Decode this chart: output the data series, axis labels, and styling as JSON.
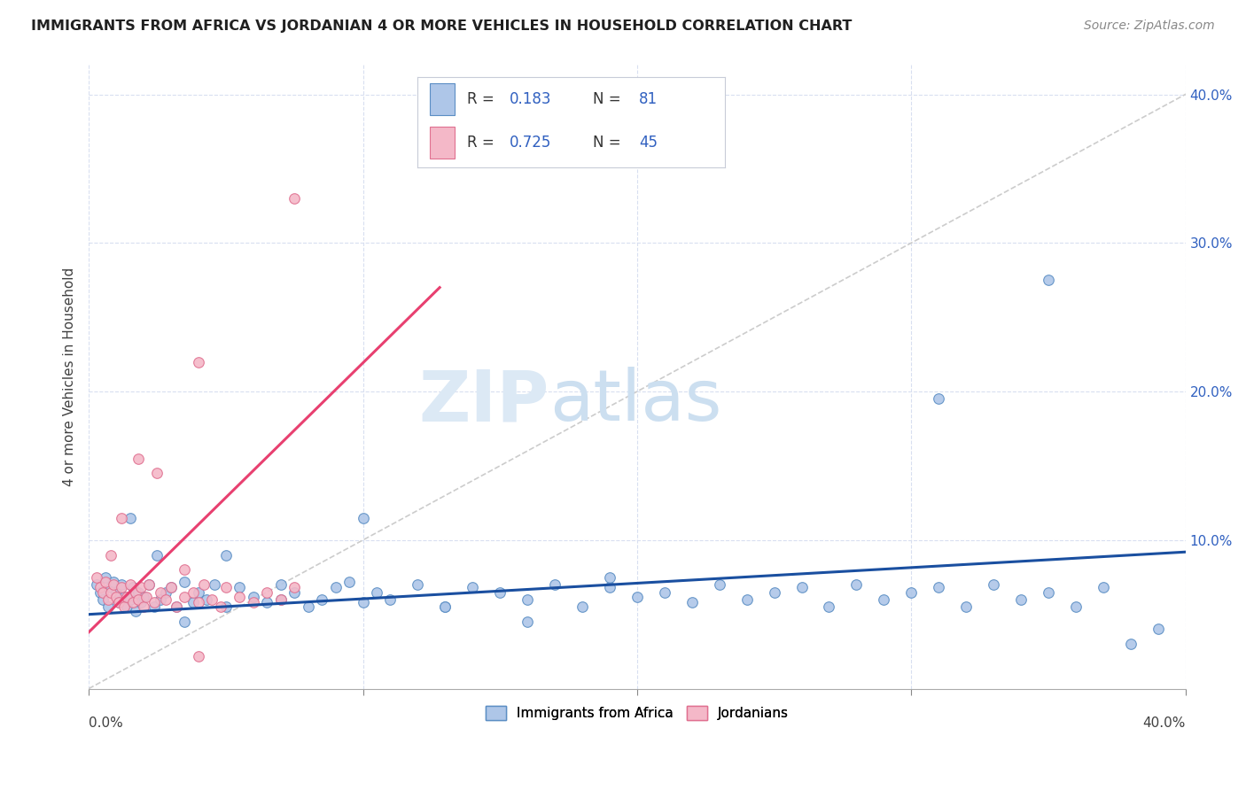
{
  "title": "IMMIGRANTS FROM AFRICA VS JORDANIAN 4 OR MORE VEHICLES IN HOUSEHOLD CORRELATION CHART",
  "source": "Source: ZipAtlas.com",
  "ylabel": "4 or more Vehicles in Household",
  "R1": 0.183,
  "N1": 81,
  "R2": 0.725,
  "N2": 45,
  "color_blue_fill": "#aec6e8",
  "color_blue_edge": "#5b8ec4",
  "color_pink_fill": "#f4b8c8",
  "color_pink_edge": "#e07090",
  "trendline_blue": "#1a4fa0",
  "trendline_pink": "#e84070",
  "diag_color": "#cccccc",
  "legend_text_color": "#3060c0",
  "grid_color": "#d8dff0",
  "ytick_color": "#3060c0",
  "legend1_label": "Immigrants from Africa",
  "legend2_label": "Jordanians",
  "xlim": [
    0.0,
    0.4
  ],
  "ylim": [
    0.0,
    0.42
  ],
  "africa_x": [
    0.003,
    0.004,
    0.005,
    0.006,
    0.007,
    0.008,
    0.009,
    0.01,
    0.011,
    0.012,
    0.013,
    0.014,
    0.015,
    0.016,
    0.017,
    0.018,
    0.019,
    0.02,
    0.022,
    0.024,
    0.026,
    0.028,
    0.03,
    0.032,
    0.035,
    0.038,
    0.04,
    0.043,
    0.046,
    0.05,
    0.055,
    0.06,
    0.065,
    0.07,
    0.075,
    0.08,
    0.085,
    0.09,
    0.095,
    0.1,
    0.105,
    0.11,
    0.12,
    0.13,
    0.14,
    0.15,
    0.16,
    0.17,
    0.18,
    0.19,
    0.2,
    0.21,
    0.22,
    0.23,
    0.24,
    0.25,
    0.26,
    0.27,
    0.28,
    0.29,
    0.3,
    0.31,
    0.32,
    0.33,
    0.34,
    0.35,
    0.36,
    0.37,
    0.38,
    0.39,
    0.015,
    0.025,
    0.035,
    0.05,
    0.07,
    0.1,
    0.13,
    0.16,
    0.19,
    0.35,
    0.31
  ],
  "africa_y": [
    0.07,
    0.065,
    0.06,
    0.075,
    0.055,
    0.068,
    0.072,
    0.065,
    0.058,
    0.07,
    0.062,
    0.055,
    0.06,
    0.068,
    0.052,
    0.065,
    0.058,
    0.062,
    0.07,
    0.055,
    0.06,
    0.065,
    0.068,
    0.055,
    0.072,
    0.058,
    0.065,
    0.06,
    0.07,
    0.055,
    0.068,
    0.062,
    0.058,
    0.07,
    0.065,
    0.055,
    0.06,
    0.068,
    0.072,
    0.058,
    0.065,
    0.06,
    0.07,
    0.055,
    0.068,
    0.065,
    0.06,
    0.07,
    0.055,
    0.068,
    0.062,
    0.065,
    0.058,
    0.07,
    0.06,
    0.065,
    0.068,
    0.055,
    0.07,
    0.06,
    0.065,
    0.068,
    0.055,
    0.07,
    0.06,
    0.065,
    0.055,
    0.068,
    0.03,
    0.04,
    0.115,
    0.09,
    0.045,
    0.09,
    0.06,
    0.115,
    0.055,
    0.045,
    0.075,
    0.275,
    0.195
  ],
  "jordan_x": [
    0.003,
    0.004,
    0.005,
    0.006,
    0.007,
    0.008,
    0.009,
    0.01,
    0.011,
    0.012,
    0.013,
    0.014,
    0.015,
    0.016,
    0.017,
    0.018,
    0.019,
    0.02,
    0.021,
    0.022,
    0.024,
    0.026,
    0.028,
    0.03,
    0.032,
    0.035,
    0.038,
    0.04,
    0.042,
    0.045,
    0.048,
    0.05,
    0.055,
    0.06,
    0.065,
    0.07,
    0.075,
    0.008,
    0.012,
    0.018,
    0.025,
    0.035,
    0.04,
    0.075,
    0.04
  ],
  "jordan_y": [
    0.075,
    0.068,
    0.065,
    0.072,
    0.06,
    0.065,
    0.07,
    0.062,
    0.058,
    0.068,
    0.055,
    0.062,
    0.07,
    0.058,
    0.065,
    0.06,
    0.068,
    0.055,
    0.062,
    0.07,
    0.058,
    0.065,
    0.06,
    0.068,
    0.055,
    0.062,
    0.065,
    0.058,
    0.07,
    0.06,
    0.055,
    0.068,
    0.062,
    0.058,
    0.065,
    0.06,
    0.068,
    0.09,
    0.115,
    0.155,
    0.145,
    0.08,
    0.022,
    0.33,
    0.22
  ],
  "trendblue_x0": 0.0,
  "trendblue_y0": 0.05,
  "trendblue_x1": 0.4,
  "trendblue_y1": 0.092,
  "trendpink_x0": 0.0,
  "trendpink_y0": 0.038,
  "trendpink_x1": 0.128,
  "trendpink_y1": 0.27
}
